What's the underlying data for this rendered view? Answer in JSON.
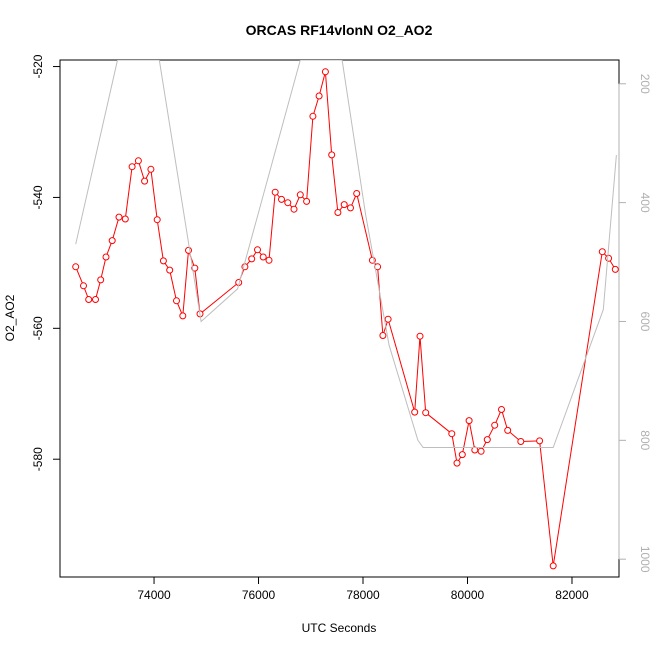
{
  "chart_data": {
    "type": "line",
    "title": "ORCAS RF14vlonN O2_AO2",
    "xlabel": "UTC Seconds",
    "ylabel": "O2_AO2",
    "xlim": [
      72200,
      82900
    ],
    "ylim": [
      -598,
      -519
    ],
    "x_ticks": [
      74000,
      76000,
      78000,
      80000,
      82000
    ],
    "y_ticks": [
      -580,
      -560,
      -540,
      -520
    ],
    "y2lim": [
      1030,
      160
    ],
    "y2_ticks": [
      200,
      400,
      600,
      800,
      1000
    ],
    "grid": false,
    "legend": "none",
    "colors": {
      "primary": "#ff0000",
      "secondary": "#bebebe"
    },
    "series": [
      {
        "axis": "left",
        "marker": "open-circle",
        "color": "#ff0000",
        "points": [
          [
            72500,
            -550.6
          ],
          [
            72650,
            -553.5
          ],
          [
            72750,
            -555.6
          ],
          [
            72880,
            -555.6
          ],
          [
            72980,
            -552.6
          ],
          [
            73080,
            -549.1
          ],
          [
            73200,
            -546.6
          ],
          [
            73330,
            -543.0
          ],
          [
            73450,
            -543.3
          ],
          [
            73580,
            -535.3
          ],
          [
            73700,
            -534.4
          ],
          [
            73820,
            -537.5
          ],
          [
            73940,
            -535.7
          ],
          [
            74060,
            -543.4
          ],
          [
            74180,
            -549.7
          ],
          [
            74300,
            -551.1
          ],
          [
            74430,
            -555.8
          ],
          [
            74550,
            -558.1
          ],
          [
            74660,
            -548.1
          ],
          [
            74780,
            -550.8
          ],
          [
            74880,
            -557.8
          ],
          [
            75620,
            -553.0
          ],
          [
            75740,
            -550.6
          ],
          [
            75870,
            -549.4
          ],
          [
            75980,
            -548.0
          ],
          [
            76090,
            -549.1
          ],
          [
            76200,
            -549.6
          ],
          [
            76320,
            -539.2
          ],
          [
            76440,
            -540.3
          ],
          [
            76560,
            -540.8
          ],
          [
            76680,
            -541.8
          ],
          [
            76800,
            -539.6
          ],
          [
            76920,
            -540.6
          ],
          [
            77040,
            -527.6
          ],
          [
            77160,
            -524.5
          ],
          [
            77280,
            -520.8
          ],
          [
            77400,
            -533.5
          ],
          [
            77520,
            -542.3
          ],
          [
            77640,
            -541.1
          ],
          [
            77760,
            -541.6
          ],
          [
            77880,
            -539.4
          ],
          [
            78180,
            -549.6
          ],
          [
            78280,
            -550.6
          ],
          [
            78380,
            -561.1
          ],
          [
            78480,
            -558.6
          ],
          [
            78990,
            -572.8
          ],
          [
            79090,
            -561.2
          ],
          [
            79200,
            -572.9
          ],
          [
            79700,
            -576.1
          ],
          [
            79800,
            -580.6
          ],
          [
            79900,
            -579.3
          ],
          [
            80030,
            -574.1
          ],
          [
            80140,
            -578.6
          ],
          [
            80260,
            -578.8
          ],
          [
            80380,
            -577.0
          ],
          [
            80520,
            -574.8
          ],
          [
            80650,
            -572.4
          ],
          [
            80770,
            -575.6
          ],
          [
            81020,
            -577.3
          ],
          [
            81380,
            -577.2
          ],
          [
            81640,
            -596.3
          ],
          [
            82580,
            -548.3
          ],
          [
            82700,
            -549.3
          ],
          [
            82830,
            -551.0
          ]
        ]
      },
      {
        "axis": "right",
        "marker": "none",
        "color": "#bebebe",
        "points": [
          [
            72500,
            470
          ],
          [
            73300,
            160
          ],
          [
            74100,
            160
          ],
          [
            74900,
            600
          ],
          [
            75600,
            545
          ],
          [
            76800,
            160
          ],
          [
            77600,
            160
          ],
          [
            78050,
            420
          ],
          [
            78500,
            640
          ],
          [
            79050,
            800
          ],
          [
            79150,
            812
          ],
          [
            80000,
            812
          ],
          [
            81000,
            812
          ],
          [
            81640,
            812
          ],
          [
            82600,
            580
          ],
          [
            82850,
            320
          ]
        ]
      }
    ]
  }
}
